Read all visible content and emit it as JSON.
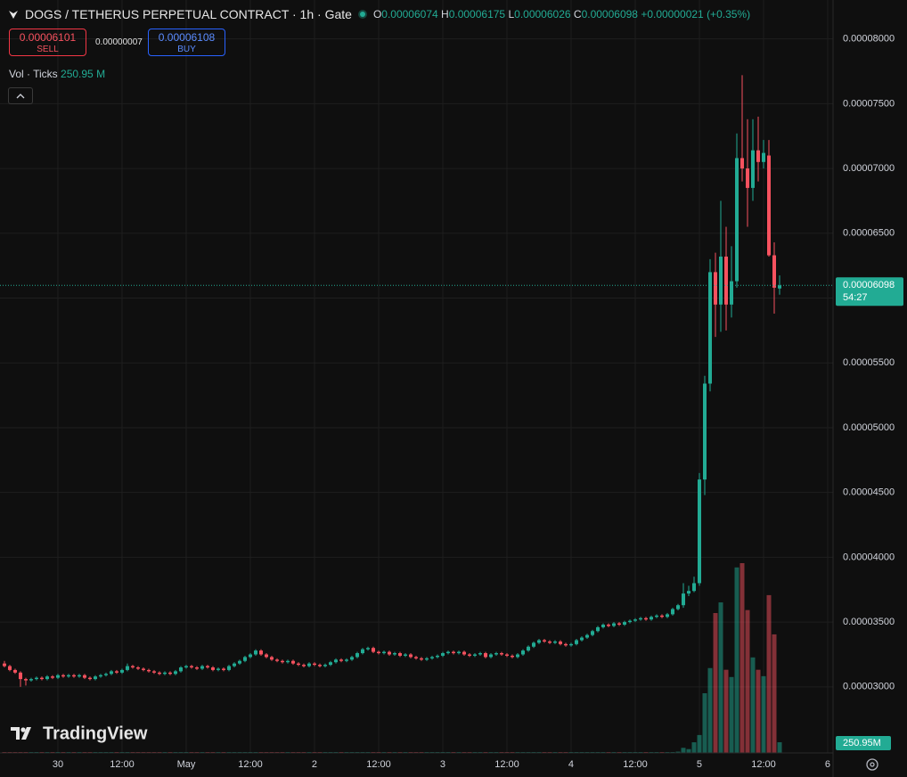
{
  "header": {
    "title": "DOGS / TETHERUS PERPETUAL CONTRACT · 1h · Gate"
  },
  "legend": {
    "o_label": "O",
    "o": 6.074e-05,
    "h_label": "H",
    "h": 6.175e-05,
    "l_label": "L",
    "l": 6.026e-05,
    "c_label": "C",
    "c": 6.098e-05,
    "change": {
      "value": 2.1e-07,
      "label": "+0.00000021"
    },
    "change_pct": {
      "value": 0.35,
      "label": "(+0.35%)"
    }
  },
  "trade": {
    "sell_price": 6.101e-05,
    "sell_label": "SELL",
    "spread": {
      "value": 7e-08,
      "label": "0.00000007"
    },
    "buy_price": 6.108e-05,
    "buy_label": "BUY"
  },
  "chart_data": {
    "type": "candlestick",
    "up_color": "#22ab94",
    "down_color": "#f7525f",
    "grid": true,
    "ylim": [
      2.49e-05,
      8.3e-05
    ],
    "yticks": [
      {
        "value": 3e-05,
        "label": "0.00003000"
      },
      {
        "value": 3.5e-05,
        "label": "0.00003500"
      },
      {
        "value": 4e-05,
        "label": "0.00004000"
      },
      {
        "value": 4.5e-05,
        "label": "0.00004500"
      },
      {
        "value": 5e-05,
        "label": "0.00005000"
      },
      {
        "value": 5.5e-05,
        "label": "0.00005500"
      },
      {
        "value": 6e-05,
        "label": "0.00006000"
      },
      {
        "value": 6.5e-05,
        "label": "0.00006500"
      },
      {
        "value": 7e-05,
        "label": "0.00007000"
      },
      {
        "value": 7.5e-05,
        "label": "0.00007500"
      },
      {
        "value": 8e-05,
        "label": "0.00008000"
      }
    ],
    "xlim": [
      -0.83,
      155
    ],
    "xticks": [
      {
        "value": 10,
        "label": "30"
      },
      {
        "value": 22,
        "label": "12:00"
      },
      {
        "value": 34,
        "label": "May"
      },
      {
        "value": 46,
        "label": "12:00"
      },
      {
        "value": 58,
        "label": "2"
      },
      {
        "value": 70,
        "label": "12:00"
      },
      {
        "value": 82,
        "label": "3"
      },
      {
        "value": 94,
        "label": "12:00"
      },
      {
        "value": 106,
        "label": "4"
      },
      {
        "value": 118,
        "label": "12:00"
      },
      {
        "value": 130,
        "label": "5"
      },
      {
        "value": 142,
        "label": "12:00"
      },
      {
        "value": 154,
        "label": "6"
      }
    ],
    "last_price": 6.098e-05,
    "countdown": "54:27",
    "volume_legend": {
      "label": "Vol · Ticks",
      "value": 250.95,
      "value_label": "250.95 M"
    },
    "volume_badge": {
      "value": 250.95,
      "label": "250.95M"
    },
    "logo": "TradingView",
    "ohlc": [
      [
        3.18e-05,
        3.2e-05,
        3.15e-05,
        3.16e-05
      ],
      [
        3.16e-05,
        3.17e-05,
        3.12e-05,
        3.13e-05
      ],
      [
        3.13e-05,
        3.14e-05,
        3.1e-05,
        3.11e-05
      ],
      [
        3.11e-05,
        3.12e-05,
        3e-05,
        3.06e-05
      ],
      [
        3.06e-05,
        3.07e-05,
        3.01e-05,
        3.05e-05
      ],
      [
        3.05e-05,
        3.07e-05,
        3.04e-05,
        3.06e-05
      ],
      [
        3.06e-05,
        3.08e-05,
        3.05e-05,
        3.07e-05
      ],
      [
        3.07e-05,
        3.08e-05,
        3.05e-05,
        3.06e-05
      ],
      [
        3.06e-05,
        3.09e-05,
        3.05e-05,
        3.08e-05
      ],
      [
        3.08e-05,
        3.09e-05,
        3.06e-05,
        3.07e-05
      ],
      [
        3.07e-05,
        3.1e-05,
        3.06e-05,
        3.09e-05
      ],
      [
        3.09e-05,
        3.1e-05,
        3.07e-05,
        3.08e-05
      ],
      [
        3.08e-05,
        3.1e-05,
        3.07e-05,
        3.09e-05
      ],
      [
        3.09e-05,
        3.1e-05,
        3.07e-05,
        3.08e-05
      ],
      [
        3.08e-05,
        3.1e-05,
        3.07e-05,
        3.09e-05
      ],
      [
        3.09e-05,
        3.1e-05,
        3.06e-05,
        3.07e-05
      ],
      [
        3.07e-05,
        3.08e-05,
        3.05e-05,
        3.06e-05
      ],
      [
        3.06e-05,
        3.09e-05,
        3.05e-05,
        3.08e-05
      ],
      [
        3.08e-05,
        3.1e-05,
        3.07e-05,
        3.09e-05
      ],
      [
        3.09e-05,
        3.11e-05,
        3.08e-05,
        3.1e-05
      ],
      [
        3.1e-05,
        3.13e-05,
        3.09e-05,
        3.12e-05
      ],
      [
        3.12e-05,
        3.13e-05,
        3.1e-05,
        3.11e-05
      ],
      [
        3.11e-05,
        3.14e-05,
        3.1e-05,
        3.13e-05
      ],
      [
        3.13e-05,
        3.18e-05,
        3.12e-05,
        3.16e-05
      ],
      [
        3.16e-05,
        3.17e-05,
        3.14e-05,
        3.15e-05
      ],
      [
        3.15e-05,
        3.16e-05,
        3.13e-05,
        3.14e-05
      ],
      [
        3.14e-05,
        3.15e-05,
        3.12e-05,
        3.13e-05
      ],
      [
        3.13e-05,
        3.14e-05,
        3.11e-05,
        3.12e-05
      ],
      [
        3.12e-05,
        3.13e-05,
        3.1e-05,
        3.11e-05
      ],
      [
        3.11e-05,
        3.12e-05,
        3.09e-05,
        3.1e-05
      ],
      [
        3.1e-05,
        3.12e-05,
        3.09e-05,
        3.11e-05
      ],
      [
        3.11e-05,
        3.12e-05,
        3.09e-05,
        3.1e-05
      ],
      [
        3.1e-05,
        3.13e-05,
        3.09e-05,
        3.12e-05
      ],
      [
        3.12e-05,
        3.16e-05,
        3.11e-05,
        3.15e-05
      ],
      [
        3.15e-05,
        3.17e-05,
        3.14e-05,
        3.16e-05
      ],
      [
        3.16e-05,
        3.17e-05,
        3.14e-05,
        3.15e-05
      ],
      [
        3.15e-05,
        3.16e-05,
        3.13e-05,
        3.14e-05
      ],
      [
        3.14e-05,
        3.17e-05,
        3.13e-05,
        3.16e-05
      ],
      [
        3.16e-05,
        3.17e-05,
        3.14e-05,
        3.15e-05
      ],
      [
        3.15e-05,
        3.16e-05,
        3.12e-05,
        3.13e-05
      ],
      [
        3.13e-05,
        3.15e-05,
        3.12e-05,
        3.14e-05
      ],
      [
        3.14e-05,
        3.15e-05,
        3.12e-05,
        3.13e-05
      ],
      [
        3.13e-05,
        3.17e-05,
        3.12e-05,
        3.16e-05
      ],
      [
        3.16e-05,
        3.19e-05,
        3.15e-05,
        3.18e-05
      ],
      [
        3.18e-05,
        3.21e-05,
        3.17e-05,
        3.2e-05
      ],
      [
        3.2e-05,
        3.24e-05,
        3.19e-05,
        3.23e-05
      ],
      [
        3.23e-05,
        3.26e-05,
        3.22e-05,
        3.25e-05
      ],
      [
        3.25e-05,
        3.29e-05,
        3.24e-05,
        3.28e-05
      ],
      [
        3.28e-05,
        3.29e-05,
        3.24e-05,
        3.25e-05
      ],
      [
        3.25e-05,
        3.26e-05,
        3.22e-05,
        3.23e-05
      ],
      [
        3.23e-05,
        3.24e-05,
        3.2e-05,
        3.21e-05
      ],
      [
        3.21e-05,
        3.22e-05,
        3.19e-05,
        3.2e-05
      ],
      [
        3.2e-05,
        3.21e-05,
        3.18e-05,
        3.19e-05
      ],
      [
        3.19e-05,
        3.21e-05,
        3.18e-05,
        3.2e-05
      ],
      [
        3.2e-05,
        3.21e-05,
        3.17e-05,
        3.18e-05
      ],
      [
        3.18e-05,
        3.19e-05,
        3.16e-05,
        3.17e-05
      ],
      [
        3.17e-05,
        3.18e-05,
        3.15e-05,
        3.16e-05
      ],
      [
        3.16e-05,
        3.19e-05,
        3.15e-05,
        3.18e-05
      ],
      [
        3.18e-05,
        3.19e-05,
        3.16e-05,
        3.17e-05
      ],
      [
        3.17e-05,
        3.18e-05,
        3.15e-05,
        3.16e-05
      ],
      [
        3.16e-05,
        3.18e-05,
        3.15e-05,
        3.17e-05
      ],
      [
        3.17e-05,
        3.2e-05,
        3.16e-05,
        3.19e-05
      ],
      [
        3.19e-05,
        3.22e-05,
        3.18e-05,
        3.21e-05
      ],
      [
        3.21e-05,
        3.22e-05,
        3.19e-05,
        3.2e-05
      ],
      [
        3.2e-05,
        3.22e-05,
        3.19e-05,
        3.21e-05
      ],
      [
        3.21e-05,
        3.24e-05,
        3.2e-05,
        3.23e-05
      ],
      [
        3.23e-05,
        3.27e-05,
        3.22e-05,
        3.26e-05
      ],
      [
        3.26e-05,
        3.3e-05,
        3.25e-05,
        3.29e-05
      ],
      [
        3.29e-05,
        3.31e-05,
        3.28e-05,
        3.3e-05
      ],
      [
        3.3e-05,
        3.31e-05,
        3.26e-05,
        3.27e-05
      ],
      [
        3.27e-05,
        3.28e-05,
        3.25e-05,
        3.26e-05
      ],
      [
        3.26e-05,
        3.28e-05,
        3.25e-05,
        3.27e-05
      ],
      [
        3.27e-05,
        3.28e-05,
        3.24e-05,
        3.25e-05
      ],
      [
        3.25e-05,
        3.27e-05,
        3.24e-05,
        3.26e-05
      ],
      [
        3.26e-05,
        3.27e-05,
        3.23e-05,
        3.24e-05
      ],
      [
        3.24e-05,
        3.26e-05,
        3.23e-05,
        3.25e-05
      ],
      [
        3.25e-05,
        3.26e-05,
        3.22e-05,
        3.23e-05
      ],
      [
        3.23e-05,
        3.24e-05,
        3.21e-05,
        3.22e-05
      ],
      [
        3.22e-05,
        3.23e-05,
        3.2e-05,
        3.21e-05
      ],
      [
        3.21e-05,
        3.23e-05,
        3.2e-05,
        3.22e-05
      ],
      [
        3.22e-05,
        3.24e-05,
        3.21e-05,
        3.23e-05
      ],
      [
        3.23e-05,
        3.25e-05,
        3.22e-05,
        3.24e-05
      ],
      [
        3.24e-05,
        3.27e-05,
        3.23e-05,
        3.26e-05
      ],
      [
        3.26e-05,
        3.28e-05,
        3.25e-05,
        3.27e-05
      ],
      [
        3.27e-05,
        3.28e-05,
        3.25e-05,
        3.26e-05
      ],
      [
        3.26e-05,
        3.28e-05,
        3.25e-05,
        3.27e-05
      ],
      [
        3.27e-05,
        3.28e-05,
        3.24e-05,
        3.25e-05
      ],
      [
        3.25e-05,
        3.26e-05,
        3.23e-05,
        3.24e-05
      ],
      [
        3.24e-05,
        3.26e-05,
        3.23e-05,
        3.25e-05
      ],
      [
        3.25e-05,
        3.27e-05,
        3.24e-05,
        3.26e-05
      ],
      [
        3.26e-05,
        3.27e-05,
        3.22e-05,
        3.23e-05
      ],
      [
        3.23e-05,
        3.26e-05,
        3.22e-05,
        3.25e-05
      ],
      [
        3.25e-05,
        3.27e-05,
        3.24e-05,
        3.26e-05
      ],
      [
        3.26e-05,
        3.27e-05,
        3.24e-05,
        3.25e-05
      ],
      [
        3.25e-05,
        3.26e-05,
        3.23e-05,
        3.24e-05
      ],
      [
        3.24e-05,
        3.25e-05,
        3.22e-05,
        3.23e-05
      ],
      [
        3.23e-05,
        3.26e-05,
        3.22e-05,
        3.25e-05
      ],
      [
        3.25e-05,
        3.29e-05,
        3.24e-05,
        3.28e-05
      ],
      [
        3.28e-05,
        3.32e-05,
        3.27e-05,
        3.31e-05
      ],
      [
        3.31e-05,
        3.35e-05,
        3.3e-05,
        3.34e-05
      ],
      [
        3.34e-05,
        3.37e-05,
        3.33e-05,
        3.36e-05
      ],
      [
        3.36e-05,
        3.37e-05,
        3.34e-05,
        3.35e-05
      ],
      [
        3.35e-05,
        3.36e-05,
        3.33e-05,
        3.34e-05
      ],
      [
        3.34e-05,
        3.36e-05,
        3.33e-05,
        3.35e-05
      ],
      [
        3.35e-05,
        3.36e-05,
        3.32e-05,
        3.33e-05
      ],
      [
        3.33e-05,
        3.34e-05,
        3.31e-05,
        3.32e-05
      ],
      [
        3.32e-05,
        3.34e-05,
        3.31e-05,
        3.33e-05
      ],
      [
        3.33e-05,
        3.37e-05,
        3.32e-05,
        3.36e-05
      ],
      [
        3.36e-05,
        3.39e-05,
        3.35e-05,
        3.38e-05
      ],
      [
        3.38e-05,
        3.41e-05,
        3.37e-05,
        3.4e-05
      ],
      [
        3.4e-05,
        3.44e-05,
        3.39e-05,
        3.43e-05
      ],
      [
        3.43e-05,
        3.47e-05,
        3.42e-05,
        3.46e-05
      ],
      [
        3.46e-05,
        3.49e-05,
        3.45e-05,
        3.48e-05
      ],
      [
        3.48e-05,
        3.49e-05,
        3.46e-05,
        3.47e-05
      ],
      [
        3.47e-05,
        3.5e-05,
        3.46e-05,
        3.49e-05
      ],
      [
        3.49e-05,
        3.5e-05,
        3.47e-05,
        3.48e-05
      ],
      [
        3.48e-05,
        3.51e-05,
        3.47e-05,
        3.5e-05
      ],
      [
        3.5e-05,
        3.52e-05,
        3.49e-05,
        3.51e-05
      ],
      [
        3.51e-05,
        3.53e-05,
        3.5e-05,
        3.52e-05
      ],
      [
        3.52e-05,
        3.54e-05,
        3.51e-05,
        3.53e-05
      ],
      [
        3.53e-05,
        3.54e-05,
        3.51e-05,
        3.52e-05
      ],
      [
        3.52e-05,
        3.55e-05,
        3.51e-05,
        3.54e-05
      ],
      [
        3.54e-05,
        3.56e-05,
        3.53e-05,
        3.55e-05
      ],
      [
        3.55e-05,
        3.56e-05,
        3.53e-05,
        3.54e-05
      ],
      [
        3.54e-05,
        3.57e-05,
        3.53e-05,
        3.56e-05
      ],
      [
        3.56e-05,
        3.61e-05,
        3.55e-05,
        3.6e-05
      ],
      [
        3.6e-05,
        3.64e-05,
        3.59e-05,
        3.63e-05
      ],
      [
        3.63e-05,
        3.8e-05,
        3.61e-05,
        3.72e-05
      ],
      [
        3.72e-05,
        3.78e-05,
        3.7e-05,
        3.74e-05
      ],
      [
        3.74e-05,
        3.85e-05,
        3.73e-05,
        3.8e-05
      ],
      [
        3.8e-05,
        4.65e-05,
        3.78e-05,
        4.6e-05
      ],
      [
        4.6e-05,
        5.4e-05,
        4.48e-05,
        5.34e-05
      ],
      [
        5.34e-05,
        6.3e-05,
        5.28e-05,
        6.2e-05
      ],
      [
        6.2e-05,
        6.35e-05,
        5.7e-05,
        5.95e-05
      ],
      [
        5.95e-05,
        6.75e-05,
        5.74e-05,
        6.32e-05
      ],
      [
        6.32e-05,
        6.55e-05,
        5.75e-05,
        5.95e-05
      ],
      [
        5.95e-05,
        6.4e-05,
        5.85e-05,
        6.13e-05
      ],
      [
        6.13e-05,
        7.27e-05,
        6.08e-05,
        7.08e-05
      ],
      [
        7.08e-05,
        7.72e-05,
        6.9e-05,
        7e-05
      ],
      [
        7e-05,
        7.38e-05,
        6.55e-05,
        6.85e-05
      ],
      [
        6.85e-05,
        7.38e-05,
        6.75e-05,
        7.14e-05
      ],
      [
        7.14e-05,
        7.4e-05,
        6.9e-05,
        7.05e-05
      ],
      [
        7.05e-05,
        7.22e-05,
        7e-05,
        7.12e-05
      ],
      [
        7.1e-05,
        7.22e-05,
        6.32e-05,
        6.33e-05
      ],
      [
        6.33e-05,
        6.43e-05,
        5.88e-05,
        6.08e-05
      ],
      [
        6.074e-05,
        6.175e-05,
        6.026e-05,
        6.098e-05
      ]
    ],
    "volume": [
      12,
      9,
      8,
      14,
      10,
      6,
      5,
      7,
      6,
      5,
      7,
      5,
      6,
      4,
      6,
      7,
      5,
      6,
      5,
      7,
      9,
      6,
      8,
      11,
      7,
      6,
      5,
      6,
      5,
      5,
      6,
      5,
      7,
      9,
      8,
      6,
      5,
      7,
      6,
      6,
      5,
      6,
      8,
      9,
      10,
      12,
      11,
      13,
      9,
      8,
      7,
      6,
      5,
      6,
      7,
      6,
      5,
      6,
      5,
      5,
      6,
      7,
      8,
      6,
      6,
      8,
      10,
      12,
      9,
      8,
      6,
      5,
      6,
      5,
      5,
      6,
      5,
      5,
      6,
      5,
      6,
      6,
      7,
      8,
      6,
      6,
      5,
      6,
      5,
      6,
      7,
      6,
      5,
      6,
      5,
      5,
      6,
      8,
      10,
      12,
      11,
      8,
      7,
      6,
      7,
      6,
      6,
      8,
      10,
      11,
      13,
      14,
      12,
      9,
      10,
      8,
      9,
      10,
      11,
      10,
      9,
      12,
      13,
      11,
      14,
      20,
      30,
      120,
      90,
      250,
      420,
      1400,
      1990,
      3280,
      3530,
      1950,
      1780,
      4350,
      4450,
      3350,
      2240,
      1950,
      1800,
      3700,
      2780,
      250.95
    ]
  }
}
